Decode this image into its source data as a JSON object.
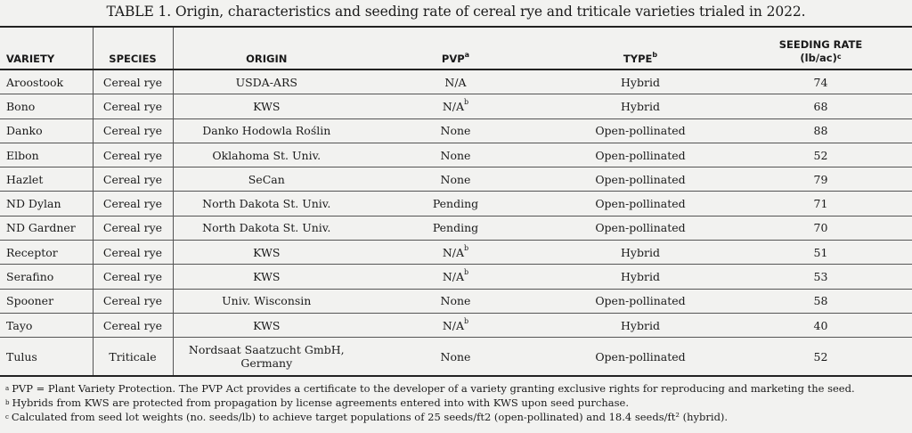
{
  "caption": "TABLE 1. Origin, characteristics and seeding rate of cereal rye and triticale varieties trialed in 2022.",
  "headers": {
    "variety": "VARIETY",
    "species": "SPECIES",
    "origin": "ORIGIN",
    "pvp": "PVP",
    "pvp_sup": "a",
    "type": "TYPE",
    "type_sup": "b",
    "rate_line1": "SEEDING RATE",
    "rate_line2": "(lb/ac)",
    "rate_sup": "c"
  },
  "rows": [
    {
      "variety": "Aroostook",
      "species": "Cereal rye",
      "origin": "USDA-ARS",
      "pvp": "N/A",
      "pvp_sup": "",
      "type": "Hybrid",
      "rate": "74"
    },
    {
      "variety": "Bono",
      "species": "Cereal rye",
      "origin": "KWS",
      "pvp": "N/A",
      "pvp_sup": "b",
      "type": "Hybrid",
      "rate": "68"
    },
    {
      "variety": "Danko",
      "species": "Cereal rye",
      "origin": "Danko Hodowla Roślin",
      "pvp": "None",
      "pvp_sup": "",
      "type": "Open-pollinated",
      "rate": "88"
    },
    {
      "variety": "Elbon",
      "species": "Cereal rye",
      "origin": "Oklahoma St. Univ.",
      "pvp": "None",
      "pvp_sup": "",
      "type": "Open-pollinated",
      "rate": "52"
    },
    {
      "variety": "Hazlet",
      "species": "Cereal rye",
      "origin": "SeCan",
      "pvp": "None",
      "pvp_sup": "",
      "type": "Open-pollinated",
      "rate": "79"
    },
    {
      "variety": "ND Dylan",
      "species": "Cereal rye",
      "origin": "North Dakota St. Univ.",
      "pvp": "Pending",
      "pvp_sup": "",
      "type": "Open-pollinated",
      "rate": "71"
    },
    {
      "variety": "ND Gardner",
      "species": "Cereal rye",
      "origin": "North Dakota St. Univ.",
      "pvp": "Pending",
      "pvp_sup": "",
      "type": "Open-pollinated",
      "rate": "70"
    },
    {
      "variety": "Receptor",
      "species": "Cereal rye",
      "origin": "KWS",
      "pvp": "N/A",
      "pvp_sup": "b",
      "type": "Hybrid",
      "rate": "51"
    },
    {
      "variety": "Serafino",
      "species": "Cereal rye",
      "origin": "KWS",
      "pvp": "N/A",
      "pvp_sup": "b",
      "type": "Hybrid",
      "rate": "53"
    },
    {
      "variety": "Spooner",
      "species": "Cereal rye",
      "origin": "Univ. Wisconsin",
      "pvp": "None",
      "pvp_sup": "",
      "type": "Open-pollinated",
      "rate": "58"
    },
    {
      "variety": "Tayo",
      "species": "Cereal rye",
      "origin": "KWS",
      "pvp": "N/A",
      "pvp_sup": "b",
      "type": "Hybrid",
      "rate": "40"
    },
    {
      "variety": "Tulus",
      "species": "Triticale",
      "origin": "Nordsaat Saatzucht GmbH, Germany",
      "pvp": "None",
      "pvp_sup": "",
      "type": "Open-pollinated",
      "rate": "52"
    }
  ],
  "footnotes": [
    {
      "mark": "a",
      "text": "PVP = Plant Variety Protection. The PVP Act provides a certificate to the developer of a variety granting exclusive rights for reproducing and marketing the seed."
    },
    {
      "mark": "b",
      "text": "Hybrids from KWS are protected from propagation by license agreements entered into with KWS upon seed purchase."
    },
    {
      "mark": "c",
      "text": "Calculated from seed lot weights (no. seeds/lb) to achieve target populations of 25 seeds/ft2 (open-pollinated) and 18.4 seeds/ft² (hybrid)."
    }
  ]
}
